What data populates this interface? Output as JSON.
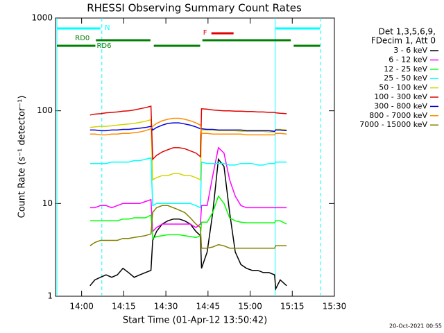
{
  "chart_data": {
    "type": "line",
    "title": "RHESSI Observing Summary Count Rates",
    "xlabel": "Start Time (01-Apr-12 13:50:42)",
    "ylabel": "Count Rate (s⁻¹ detector⁻¹)",
    "legend_title": [
      "Det 1,3,5,6,9,",
      "FDecim 1, Att 0"
    ],
    "legend": "right",
    "footer": "20-Oct-2021 00:55",
    "log_y": true,
    "xlim": [
      0,
      99.3
    ],
    "ylim": [
      1,
      1000
    ],
    "yticks": [
      1,
      10,
      100,
      1000
    ],
    "xticks": [
      {
        "value": 9.3,
        "label": "14:00"
      },
      {
        "value": 24.3,
        "label": "14:15"
      },
      {
        "value": 39.3,
        "label": "14:30"
      },
      {
        "value": 54.3,
        "label": "14:45"
      },
      {
        "value": 69.3,
        "label": "15:00"
      },
      {
        "value": 84.3,
        "label": "15:15"
      },
      {
        "value": 99.3,
        "label": "15:30"
      }
    ],
    "x": [
      12.3,
      14,
      16,
      18,
      20,
      22,
      24,
      26,
      28,
      30,
      32,
      34,
      34.6,
      36,
      38,
      40,
      42,
      44,
      46,
      48,
      50,
      51.6,
      52,
      54,
      56,
      58,
      60,
      62,
      64,
      66,
      68,
      70,
      72,
      74,
      76,
      78,
      78.4,
      80,
      82.3
    ],
    "series": [
      {
        "name": "3 - 6 keV",
        "color": "#000000",
        "values": [
          1.3,
          1.5,
          1.6,
          1.7,
          1.6,
          1.7,
          2,
          1.8,
          1.6,
          1.7,
          1.8,
          1.9,
          4,
          5,
          6,
          6.5,
          6.8,
          6.8,
          6.5,
          6,
          5,
          4.5,
          2,
          3,
          8,
          30,
          25,
          8,
          3,
          2.2,
          2,
          1.9,
          1.9,
          1.8,
          1.8,
          1.7,
          1.2,
          1.5,
          1.3
        ]
      },
      {
        "name": "6 - 12 keV",
        "color": "#ff00ff",
        "values": [
          9,
          9,
          9.5,
          9.5,
          9,
          9.5,
          10,
          10,
          10,
          10,
          10.5,
          11,
          5,
          5.5,
          6,
          6,
          6,
          6,
          6,
          6,
          5.5,
          6,
          9.5,
          9.5,
          20,
          40,
          35,
          18,
          12,
          9.5,
          9,
          9,
          9,
          9,
          9,
          9,
          9,
          9,
          9
        ]
      },
      {
        "name": "12 - 25 keV",
        "color": "#00ff00",
        "values": [
          6.5,
          6.5,
          6.5,
          6.5,
          6.5,
          6.5,
          6.8,
          6.8,
          7,
          7,
          7,
          7.5,
          4.2,
          4.4,
          4.5,
          4.6,
          4.6,
          4.6,
          4.5,
          4.4,
          4.3,
          4.5,
          6.3,
          6.3,
          8,
          12,
          10,
          7,
          6.5,
          6.3,
          6.2,
          6.2,
          6.2,
          6.2,
          6.2,
          6.2,
          6.5,
          6.5,
          6
        ]
      },
      {
        "name": "25 - 50 keV",
        "color": "#00ffff",
        "values": [
          27,
          27,
          27,
          27,
          28,
          28,
          28,
          28,
          29,
          29,
          30,
          31,
          9.5,
          10,
          10,
          10,
          10,
          10,
          10,
          10,
          9.5,
          9,
          28,
          27,
          27,
          27,
          27,
          26,
          26,
          27,
          27,
          27,
          26,
          26,
          27,
          27,
          28,
          28,
          28
        ]
      },
      {
        "name": "50 - 100 keV",
        "color": "#d4d400",
        "values": [
          66,
          67,
          68,
          68,
          69,
          70,
          71,
          72,
          73,
          75,
          77,
          80,
          18,
          19,
          20,
          20,
          21,
          21,
          20,
          20,
          19,
          18,
          62,
          62,
          62,
          61,
          61,
          61,
          61,
          60,
          60,
          60,
          60,
          60,
          59,
          59,
          63,
          63,
          62
        ]
      },
      {
        "name": "100 - 300 keV",
        "color": "#e00000",
        "values": [
          90,
          92,
          93,
          95,
          96,
          97,
          99,
          100,
          102,
          105,
          108,
          112,
          30,
          33,
          36,
          38,
          40,
          40,
          39,
          37,
          35,
          32,
          105,
          104,
          102,
          101,
          100,
          100,
          99,
          99,
          98,
          98,
          97,
          97,
          96,
          96,
          95,
          94,
          93
        ]
      },
      {
        "name": "300 - 800 keV",
        "color": "#0000e0",
        "values": [
          62,
          62,
          61,
          61,
          62,
          62,
          63,
          63,
          64,
          65,
          66,
          68,
          62,
          66,
          70,
          73,
          74,
          74,
          72,
          70,
          67,
          64,
          64,
          63,
          63,
          62,
          62,
          62,
          62,
          62,
          61,
          61,
          61,
          61,
          61,
          60,
          62,
          62,
          61
        ]
      },
      {
        "name": "800 - 7000 keV",
        "color": "#ff8c00",
        "values": [
          56,
          56,
          55,
          55,
          56,
          56,
          57,
          57,
          58,
          59,
          61,
          64,
          68,
          73,
          78,
          81,
          83,
          83,
          81,
          78,
          74,
          70,
          57,
          57,
          56,
          56,
          56,
          56,
          56,
          56,
          55,
          55,
          55,
          55,
          55,
          55,
          57,
          57,
          56
        ]
      },
      {
        "name": "7000 - 15000 keV",
        "color": "#808000",
        "values": [
          3.5,
          3.8,
          4,
          4,
          4,
          4,
          4.2,
          4.2,
          4.3,
          4.4,
          4.5,
          4.7,
          8,
          9,
          9.5,
          9.5,
          9,
          8.5,
          8,
          7,
          6,
          5.5,
          3.3,
          3.3,
          3.4,
          3.6,
          3.5,
          3.3,
          3.3,
          3.3,
          3.3,
          3.3,
          3.3,
          3.3,
          3.3,
          3.3,
          3.5,
          3.5,
          3.5
        ]
      }
    ],
    "flags": [
      {
        "label": "N",
        "color": "#00ffff",
        "intervals": [
          [
            0.5,
            16
          ],
          [
            78.4,
            94.2
          ]
        ]
      },
      {
        "label": "F",
        "color": "#e00000",
        "intervals": [
          [
            55.5,
            63.4
          ]
        ]
      },
      {
        "label": "RD0",
        "color": "#008000",
        "intervals": [
          [
            14.4,
            33.8
          ],
          [
            52.3,
            83.8
          ]
        ]
      },
      {
        "label": "RD6",
        "color": "#008000",
        "intervals": [
          [
            0.5,
            14.2
          ],
          [
            35,
            51.5
          ],
          [
            84.8,
            94.2
          ]
        ]
      }
    ],
    "markers": [
      {
        "x": 0.5,
        "color": "#00ffff",
        "style": "solid"
      },
      {
        "x": 16.5,
        "color": "#00ffff",
        "style": "dashed"
      },
      {
        "x": 78.2,
        "color": "#00ffff",
        "style": "solid"
      },
      {
        "x": 94.4,
        "color": "#00ffff",
        "style": "dashed"
      }
    ]
  }
}
